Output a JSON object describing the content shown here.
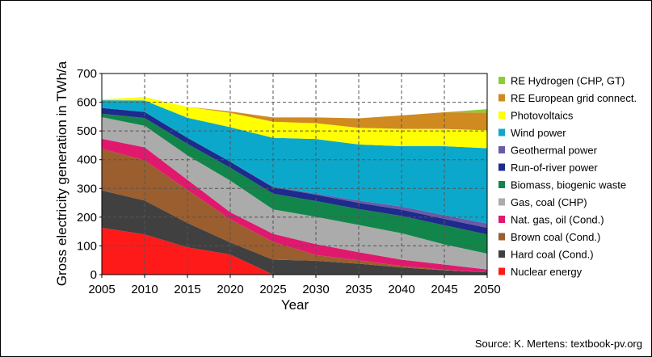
{
  "chart_data": {
    "type": "area",
    "stacked": true,
    "xlabel": "Year",
    "ylabel": "Gross electricity generation in TWh/a",
    "x": [
      2005,
      2010,
      2015,
      2020,
      2025,
      2030,
      2035,
      2040,
      2045,
      2050
    ],
    "xlim": [
      2005,
      2050
    ],
    "ylim": [
      0,
      700
    ],
    "yticks": [
      0,
      100,
      200,
      300,
      400,
      500,
      600,
      700
    ],
    "grid": true,
    "legend_position": "right",
    "series": [
      {
        "name": "Nuclear energy",
        "color": "#ff1a1a",
        "values": [
          163,
          140,
          95,
          70,
          0,
          0,
          0,
          0,
          0,
          0
        ]
      },
      {
        "name": "Hard coal (Cond.)",
        "color": "#404040",
        "values": [
          130,
          118,
          85,
          42,
          52,
          48,
          38,
          25,
          15,
          8
        ]
      },
      {
        "name": "Brown coal (Cond.)",
        "color": "#9b5e2e",
        "values": [
          145,
          140,
          115,
          80,
          62,
          20,
          12,
          5,
          2,
          0
        ]
      },
      {
        "name": "Nat. gas, oil (Cond.)",
        "color": "#e0196e",
        "values": [
          35,
          45,
          35,
          25,
          28,
          38,
          28,
          22,
          18,
          10
        ]
      },
      {
        "name": "Gas, coal (CHP)",
        "color": "#ababab",
        "values": [
          75,
          75,
          85,
          110,
          85,
          95,
          95,
          92,
          70,
          55
        ]
      },
      {
        "name": "Biomass, biogenic waste",
        "color": "#12864a",
        "values": [
          12,
          27,
          40,
          45,
          55,
          55,
          55,
          60,
          67,
          67
        ]
      },
      {
        "name": "Run-of-river power",
        "color": "#1e2a8c",
        "values": [
          20,
          21,
          21,
          21,
          22,
          22,
          22,
          22,
          22,
          23
        ]
      },
      {
        "name": "Geothermal power",
        "color": "#6a5aa8",
        "values": [
          0,
          0,
          0,
          0,
          2,
          4,
          8,
          11,
          13,
          15
        ]
      },
      {
        "name": "Wind power",
        "color": "#0ca8cc",
        "values": [
          27,
          40,
          70,
          120,
          170,
          190,
          195,
          210,
          240,
          262
        ]
      },
      {
        "name": "Photovoltaics",
        "color": "#ffff00",
        "values": [
          3,
          12,
          38,
          50,
          56,
          55,
          58,
          60,
          60,
          62
        ]
      },
      {
        "name": "RE European grid connect.",
        "color": "#d08a20",
        "values": [
          0,
          0,
          0,
          5,
          15,
          20,
          33,
          47,
          58,
          62
        ]
      },
      {
        "name": "RE Hydrogen (CHP, GT)",
        "color": "#8ccc3a",
        "values": [
          0,
          0,
          0,
          0,
          0,
          0,
          0,
          0,
          0,
          12
        ]
      }
    ]
  },
  "source": "Source: K. Mertens: textbook-pv.org"
}
